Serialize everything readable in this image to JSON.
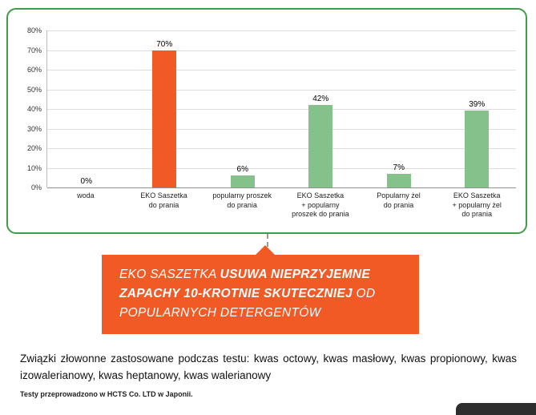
{
  "chart_data": {
    "type": "bar",
    "title": "",
    "xlabel": "",
    "ylabel": "",
    "categories": [
      "woda",
      "EKO Saszetka\ndo prania",
      "popularny proszek\ndo prania",
      "EKO Saszetka\n+ popularny\nproszek do prania",
      "Popularny żel\ndo prania",
      "EKO Saszetka\n+ popularny żel\ndo prania"
    ],
    "values": [
      0,
      70,
      6,
      42,
      7,
      39
    ],
    "value_labels": [
      "0%",
      "70%",
      "6%",
      "42%",
      "7%",
      "39%"
    ],
    "bar_colors": [
      "#85c28b",
      "#f15a25",
      "#85c28b",
      "#85c28b",
      "#85c28b",
      "#85c28b"
    ],
    "ylim": [
      0,
      80
    ],
    "yticks": [
      "80%",
      "70%",
      "60%",
      "50%",
      "40%",
      "30%",
      "20%",
      "10%",
      "0%"
    ],
    "grid": true,
    "legend_position": "none"
  },
  "callout": {
    "lines": [
      [
        {
          "t": "EKO  SASZETKA  ",
          "b": false
        },
        {
          "t": "USUWA  NIEPRZYJEMNE",
          "b": true
        }
      ],
      [
        {
          "t": "ZAPACHY 10-KROTNIE SKUTECZNIEJ",
          "b": true
        },
        {
          "t": " OD",
          "b": false
        }
      ],
      [
        {
          "t": "POPULARNYCH DETERGENTÓW",
          "b": false
        }
      ]
    ]
  },
  "footer": {
    "description": "Związki złowonne zastosowane podczas testu: kwas octowy, kwas masłowy, kwas propionowy, kwas izowalerianowy, kwas heptanowy, kwas walerianowy",
    "note": "Testy  przeprowadzono w HCTS Co. LTD w Japonii."
  },
  "colors": {
    "accent_orange": "#f15a25",
    "bar_green": "#85c28b",
    "border_green": "#3f9b47"
  }
}
